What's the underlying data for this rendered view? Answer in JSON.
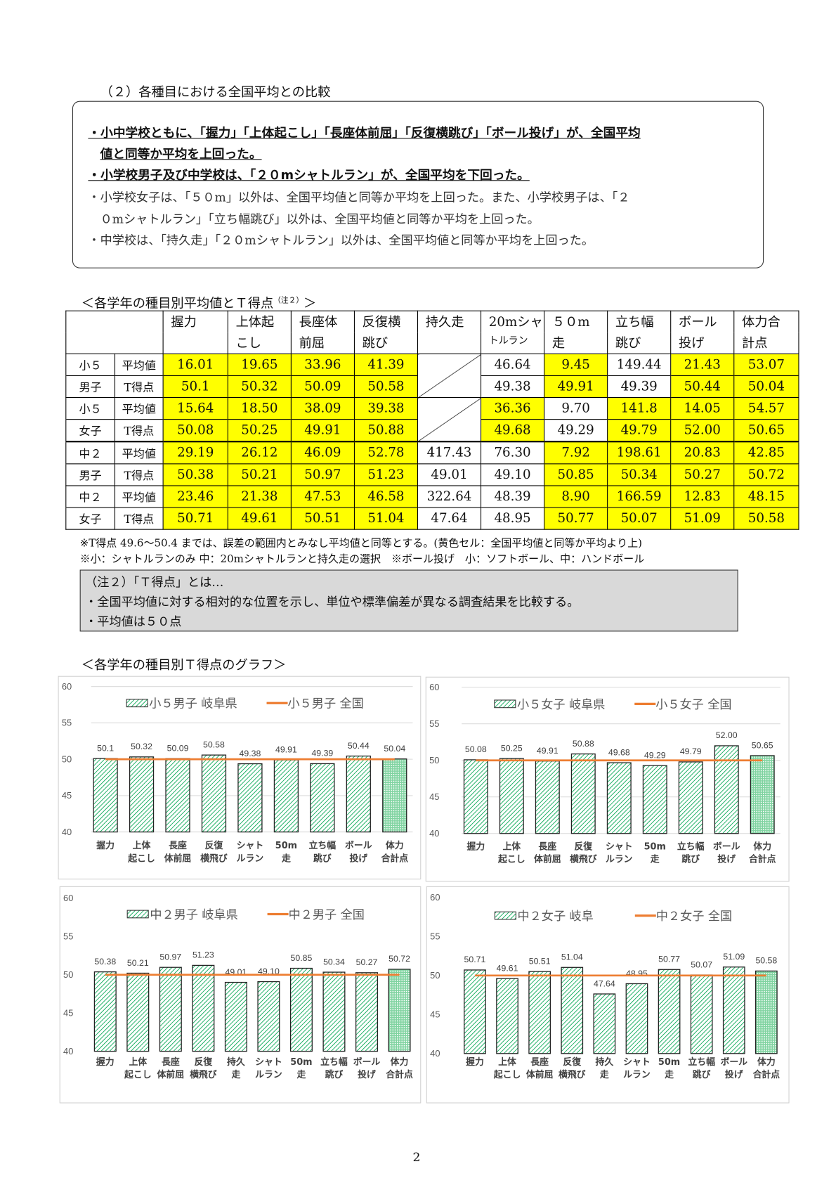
{
  "section_title": "（２）各種目における全国平均との比較",
  "summary": {
    "bold_lines": [
      "・小中学校ともに、「握力」「上体起こし」「長座体前屈」「反復横跳び」「ボール投げ」が、全国平均",
      "値と同等か平均を上回った。",
      "・小学校男子及び中学校は、「２０mシャトルラン」が、全国平均を下回った。"
    ],
    "lines": [
      "・小学校女子は、「５０m」以外は、全国平均値と同等か平均を上回った。また、小学校男子は、「２",
      "０mシャトルラン」「立ち幅跳び」以外は、全国平均値と同等か平均を上回った。",
      "・中学校は、「持久走」「２０mシャトルラン」以外は、全国平均値と同等か平均を上回った。"
    ]
  },
  "table": {
    "title": "＜各学年の種目別平均値とＴ得点",
    "title_note": "（注２）",
    "title_end": "＞",
    "headers": [
      [
        "握力",
        ""
      ],
      [
        "上体起",
        "こし"
      ],
      [
        "長座体",
        "前屈"
      ],
      [
        "反復横",
        "跳び"
      ],
      [
        "持久走",
        ""
      ],
      [
        "20mシャ",
        "トルラン"
      ],
      [
        "５０m",
        "走"
      ],
      [
        "立ち幅",
        "跳び"
      ],
      [
        "ボール",
        "投げ"
      ],
      [
        "体力合",
        "計点"
      ]
    ],
    "row_labels": [
      "平均値",
      "T得点"
    ],
    "groups": [
      {
        "g1": "小５",
        "g2": "男子",
        "avg": [
          "16.01",
          "19.65",
          "33.96",
          "41.39",
          "",
          "46.64",
          "9.45",
          "149.44",
          "21.43",
          "53.07"
        ],
        "t": [
          "50.1",
          "50.32",
          "50.09",
          "50.58",
          "",
          "49.38",
          "49.91",
          "49.39",
          "50.44",
          "50.04"
        ],
        "yellow": [
          1,
          1,
          1,
          1,
          0,
          0,
          1,
          0,
          1,
          1
        ],
        "slash": 4
      },
      {
        "g1": "小５",
        "g2": "女子",
        "avg": [
          "15.64",
          "18.50",
          "38.09",
          "39.38",
          "",
          "36.36",
          "9.70",
          "141.8",
          "14.05",
          "54.57"
        ],
        "t": [
          "50.08",
          "50.25",
          "49.91",
          "50.88",
          "",
          "49.68",
          "49.29",
          "49.79",
          "52.00",
          "50.65"
        ],
        "yellow": [
          1,
          1,
          1,
          1,
          0,
          1,
          0,
          1,
          1,
          1
        ],
        "slash": 4
      },
      {
        "g1": "中２",
        "g2": "男子",
        "avg": [
          "29.19",
          "26.12",
          "46.09",
          "52.78",
          "417.43",
          "76.30",
          "7.92",
          "198.61",
          "20.83",
          "42.85"
        ],
        "t": [
          "50.38",
          "50.21",
          "50.97",
          "51.23",
          "49.01",
          "49.10",
          "50.85",
          "50.34",
          "50.27",
          "50.72"
        ],
        "yellow": [
          1,
          1,
          1,
          1,
          0,
          0,
          1,
          1,
          1,
          1
        ],
        "slash": -1
      },
      {
        "g1": "中２",
        "g2": "女子",
        "avg": [
          "23.46",
          "21.38",
          "47.53",
          "46.58",
          "322.64",
          "48.39",
          "8.90",
          "166.59",
          "12.83",
          "48.15"
        ],
        "t": [
          "50.71",
          "49.61",
          "50.51",
          "51.04",
          "47.64",
          "48.95",
          "50.77",
          "50.07",
          "51.09",
          "50.58"
        ],
        "yellow": [
          1,
          1,
          1,
          1,
          0,
          0,
          1,
          1,
          1,
          1
        ],
        "slash": -1
      }
    ],
    "highlight_color": "#ffff00"
  },
  "notes": [
    "※T得点 49.6～50.4 までは、誤差の範囲内とみなし平均値と同等とする。(黄色セル：全国平均値と同等か平均より上)",
    "※小：シャトルランのみ 中：20mシャトルランと持久走の選択　※ボール投げ　小：ソフトボール、中：ハンドボール"
  ],
  "note2": [
    "（注２）「Ｔ得点」とは…",
    "・全国平均値に対する相対的な位置を示し、単位や標準偏差が異なる調査結果を比較する。",
    "・平均値は５０点"
  ],
  "graph_title": "＜各学年の種目別Ｔ得点のグラフ＞",
  "page_number": "2",
  "chart_data": [
    {
      "type": "bar",
      "legend": [
        "小５男子 岐阜県",
        "小５男子 全国"
      ],
      "ylim": [
        40,
        60
      ],
      "yticks": [
        "40",
        "45",
        "50",
        "55",
        "60"
      ],
      "categories": [
        [
          "握力",
          ""
        ],
        [
          "上体",
          "起こし"
        ],
        [
          "長座",
          "体前屈"
        ],
        [
          "反復",
          "横飛び"
        ],
        [
          "シャト",
          "ルラン"
        ],
        [
          "50m",
          "走"
        ],
        [
          "立ち幅",
          "跳び"
        ],
        [
          "ボール",
          "投げ"
        ],
        [
          "体力",
          "合計点"
        ]
      ],
      "values": [
        50.1,
        50.32,
        50.09,
        50.58,
        49.38,
        49.91,
        49.39,
        50.44,
        50.04
      ],
      "labels": [
        "50.1",
        "50.32",
        "50.09",
        "50.58",
        "49.38",
        "49.91",
        "49.39",
        "50.44",
        "50.04"
      ],
      "national": 50,
      "grid": true,
      "legend_position": "top"
    },
    {
      "type": "bar",
      "legend": [
        "小５女子 岐阜県",
        "小５女子 全国"
      ],
      "ylim": [
        40,
        60
      ],
      "yticks": [
        "40",
        "45",
        "50",
        "55",
        "60"
      ],
      "categories": [
        [
          "握力",
          ""
        ],
        [
          "上体",
          "起こし"
        ],
        [
          "長座",
          "体前屈"
        ],
        [
          "反復",
          "横飛び"
        ],
        [
          "シャト",
          "ルラン"
        ],
        [
          "50m",
          "走"
        ],
        [
          "立ち幅",
          "跳び"
        ],
        [
          "ボール",
          "投げ"
        ],
        [
          "体力",
          "合計点"
        ]
      ],
      "values": [
        50.08,
        50.25,
        49.91,
        50.88,
        49.68,
        49.29,
        49.79,
        52.0,
        50.65
      ],
      "labels": [
        "50.08",
        "50.25",
        "49.91",
        "50.88",
        "49.68",
        "49.29",
        "49.79",
        "52.00",
        "50.65"
      ],
      "national": 50,
      "grid": false,
      "legend_position": "top"
    },
    {
      "type": "bar",
      "legend": [
        "中２男子 岐阜県",
        "中２男子 全国"
      ],
      "ylim": [
        40,
        60
      ],
      "yticks": [
        "40",
        "45",
        "50",
        "55",
        "60"
      ],
      "categories": [
        [
          "握力",
          ""
        ],
        [
          "上体",
          "起こし"
        ],
        [
          "長座",
          "体前屈"
        ],
        [
          "反復",
          "横飛び"
        ],
        [
          "持久",
          "走"
        ],
        [
          "シャト",
          "ルラン"
        ],
        [
          "50m",
          "走"
        ],
        [
          "立ち幅",
          "跳び"
        ],
        [
          "ボール",
          "投げ"
        ],
        [
          "体力",
          "合計点"
        ]
      ],
      "values": [
        50.38,
        50.21,
        50.97,
        51.23,
        49.01,
        49.1,
        50.85,
        50.34,
        50.27,
        50.72
      ],
      "labels": [
        "50.38",
        "50.21",
        "50.97",
        "51.23",
        "49.01",
        "49.10",
        "50.85",
        "50.34",
        "50.27",
        "50.72"
      ],
      "national": 50,
      "grid": false,
      "legend_position": "top"
    },
    {
      "type": "bar",
      "legend": [
        "中２女子 岐阜",
        "中２女子 全国"
      ],
      "ylim": [
        40,
        60
      ],
      "yticks": [
        "40",
        "45",
        "50",
        "55",
        "60"
      ],
      "categories": [
        [
          "握力",
          ""
        ],
        [
          "上体",
          "起こし"
        ],
        [
          "長座",
          "体前屈"
        ],
        [
          "反復",
          "横飛び"
        ],
        [
          "持久",
          "走"
        ],
        [
          "シャト",
          "ルラン"
        ],
        [
          "50m",
          "走"
        ],
        [
          "立ち幅",
          "跳び"
        ],
        [
          "ボール",
          "投げ"
        ],
        [
          "体力",
          "合計点"
        ]
      ],
      "values": [
        50.71,
        49.61,
        50.51,
        51.04,
        47.64,
        48.95,
        50.77,
        50.07,
        51.09,
        50.58
      ],
      "labels": [
        "50.71",
        "49.61",
        "50.51",
        "51.04",
        "47.64",
        "48.95",
        "50.77",
        "50.07",
        "51.09",
        "50.58"
      ],
      "national": 50,
      "grid": false,
      "legend_position": "top"
    }
  ],
  "colors": {
    "bar": "#00a550",
    "national_line": "#ed7d31"
  }
}
